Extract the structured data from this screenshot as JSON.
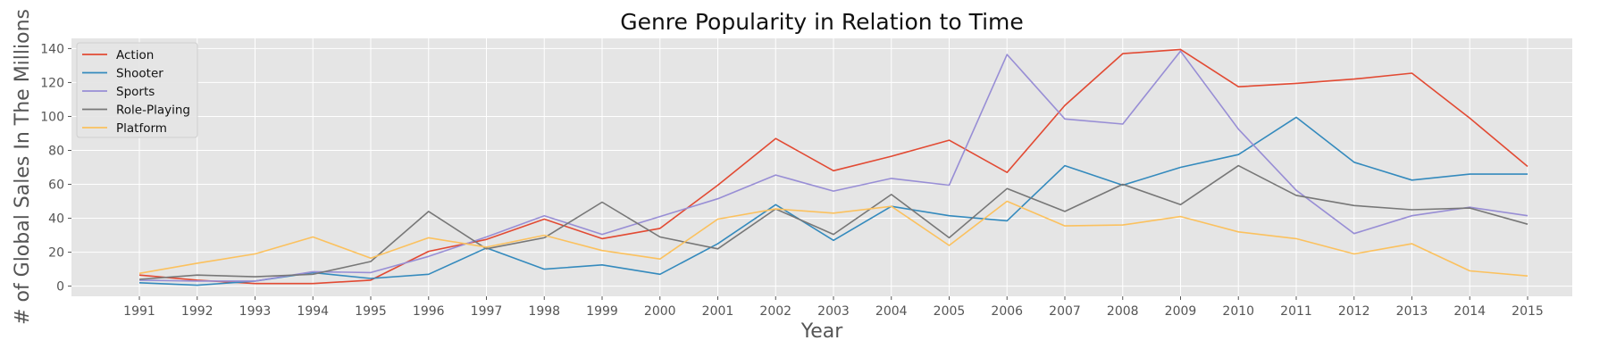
{
  "chart_data": {
    "type": "line",
    "title": "Genre Popularity in Relation to Time",
    "xlabel": "Year",
    "ylabel": "# of Global Sales In The Millions",
    "x": [
      1991,
      1992,
      1993,
      1994,
      1995,
      1996,
      1997,
      1998,
      1999,
      2000,
      2001,
      2002,
      2003,
      2004,
      2005,
      2006,
      2007,
      2008,
      2009,
      2010,
      2011,
      2012,
      2013,
      2014,
      2015
    ],
    "ylim": [
      -6,
      146
    ],
    "yticks": [
      0,
      20,
      40,
      60,
      80,
      100,
      120,
      140
    ],
    "grid": true,
    "legend_position": "top-left",
    "series": [
      {
        "name": "Action",
        "color": "#E24A33",
        "values": [
          6.5,
          3.5,
          1.5,
          1.5,
          3.5,
          20.5,
          27.5,
          39.5,
          28,
          34,
          59.5,
          87,
          68,
          76.5,
          86,
          67,
          106.5,
          137,
          139.5,
          117.5,
          119.5,
          122,
          125.5,
          99,
          70.5
        ]
      },
      {
        "name": "Shooter",
        "color": "#348ABD",
        "values": [
          2,
          0.5,
          3,
          8,
          4.5,
          7,
          22.5,
          10,
          12.5,
          7,
          25,
          48,
          27,
          47,
          41.5,
          38.5,
          71,
          59.5,
          70,
          77.5,
          99.5,
          73,
          62.5,
          66,
          66
        ]
      },
      {
        "name": "Sports",
        "color": "#988ED5",
        "values": [
          3.5,
          3,
          3,
          8.5,
          8,
          17.5,
          29,
          41.5,
          30.5,
          41,
          51.5,
          65.5,
          56,
          63.5,
          59.5,
          136.5,
          98.5,
          95.5,
          138.5,
          92.5,
          56.5,
          31,
          41.5,
          46.5,
          41.5
        ]
      },
      {
        "name": "Role-Playing",
        "color": "#777777",
        "values": [
          4,
          6.5,
          5.5,
          7,
          14.5,
          44,
          22,
          28.5,
          49.5,
          29,
          22,
          45.5,
          30.5,
          54,
          28.5,
          57.5,
          44,
          60,
          48,
          71,
          53.5,
          47.5,
          45,
          46,
          36.5
        ]
      },
      {
        "name": "Platform",
        "color": "#FBC15E",
        "values": [
          7.5,
          13.5,
          19,
          29,
          16.5,
          28.5,
          23,
          30,
          21,
          16,
          39.5,
          45.5,
          43,
          47,
          24,
          50,
          35.5,
          36,
          41,
          32,
          28,
          19,
          25,
          9,
          6
        ]
      }
    ]
  }
}
